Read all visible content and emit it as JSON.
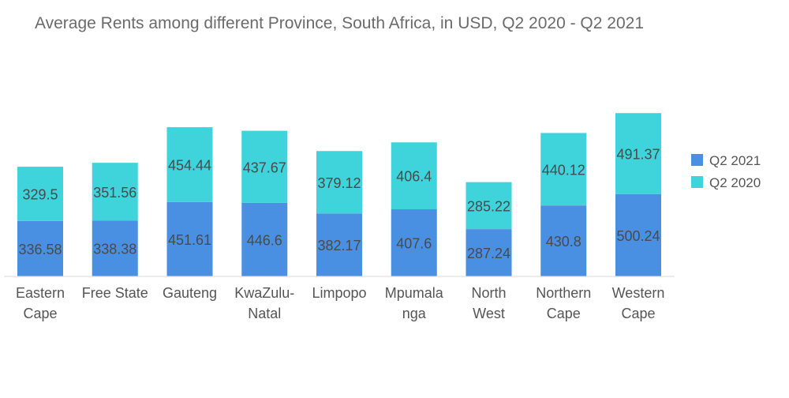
{
  "chart_data": {
    "type": "bar",
    "stacked": true,
    "title": "Average Rents among different Province, South Africa, in USD, Q2 2020 - Q2 2021",
    "categories": [
      "Eastern Cape",
      "Free State",
      "Gauteng",
      "KwaZulu-Natal",
      "Limpopo",
      "Mpumalanga",
      "North West",
      "Northern Cape",
      "Western Cape"
    ],
    "category_lines": [
      [
        "Eastern",
        "Cape"
      ],
      [
        "Free State"
      ],
      [
        "Gauteng"
      ],
      [
        "KwaZulu-",
        "Natal"
      ],
      [
        "Limpopo"
      ],
      [
        "Mpumala",
        "nga"
      ],
      [
        "North",
        "West"
      ],
      [
        "Northern",
        "Cape"
      ],
      [
        "Western",
        "Cape"
      ]
    ],
    "series": [
      {
        "name": "Q2 2021",
        "color": "#4a90e2",
        "values": [
          336.58,
          338.38,
          451.61,
          446.6,
          382.17,
          407.6,
          287.24,
          430.8,
          500.24
        ]
      },
      {
        "name": "Q2 2020",
        "color": "#3fd3dc",
        "values": [
          329.5,
          351.56,
          454.44,
          437.67,
          379.12,
          406.4,
          285.22,
          440.12,
          491.37
        ]
      }
    ],
    "legend_position": "right",
    "grid": false
  }
}
